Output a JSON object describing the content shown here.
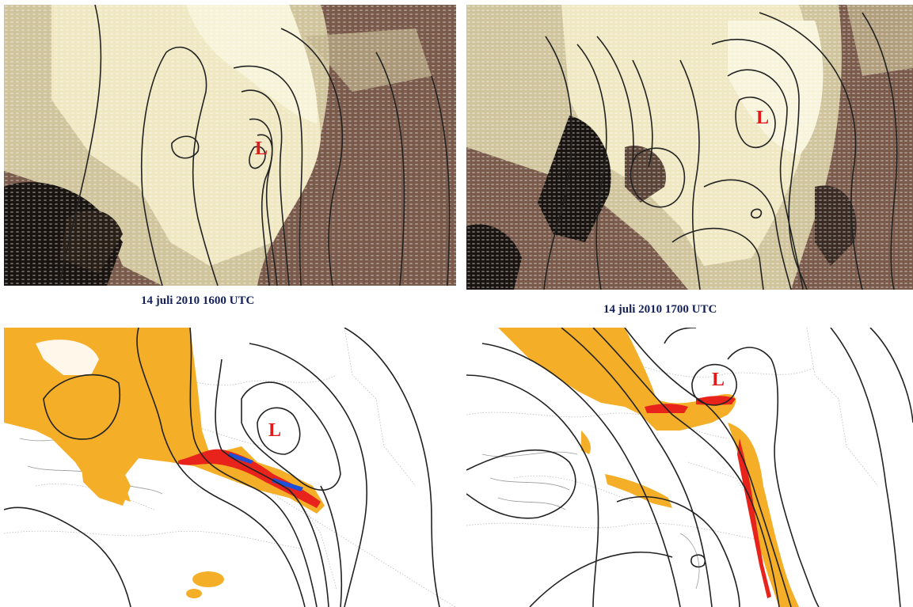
{
  "panels": [
    {
      "id": "sat-1600",
      "type": "satellite",
      "caption": "14 juli 2010  1600 UTC",
      "low_label": "L"
    },
    {
      "id": "sat-1700",
      "type": "satellite",
      "caption": "14 juli 2010 1700 UTC",
      "low_label": "L"
    },
    {
      "id": "rad-1600",
      "type": "radar",
      "low_label": "L"
    },
    {
      "id": "rad-1700",
      "type": "radar",
      "low_label": "L"
    }
  ],
  "colors": {
    "satellite_dark": "#7a5a4a",
    "satellite_bright": "#f3eec8",
    "cloud_free": "#1a1410",
    "radar_light": "#f4ae28",
    "radar_medium": "#e8231c",
    "radar_heavy": "#1f4fd6",
    "isobar": "#222222",
    "low_marker": "#e01a1a",
    "caption": "#14205a"
  }
}
